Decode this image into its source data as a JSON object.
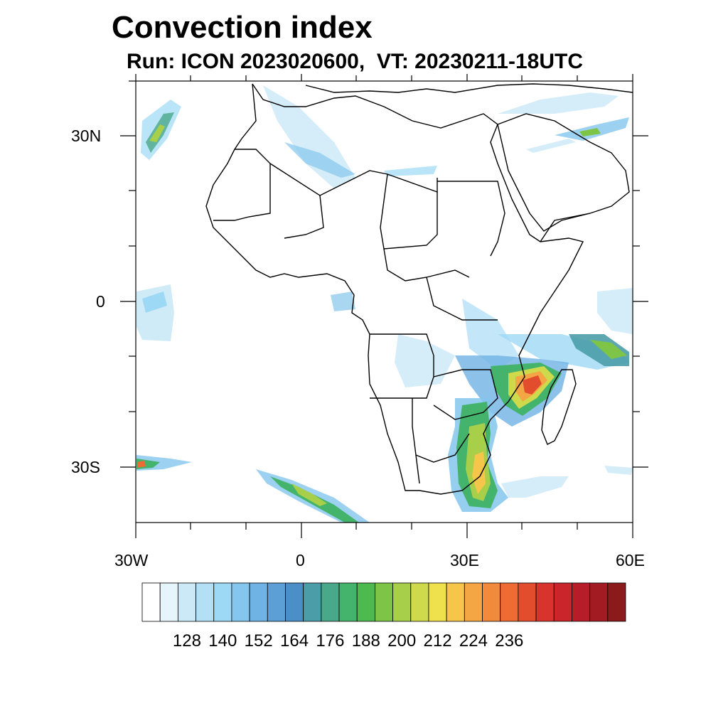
{
  "title": "Convection index",
  "subtitle": "Run: ICON 2023020600,  VT: 20230211-18UTC",
  "axes": {
    "x_ticks": [
      "30W",
      "0",
      "30E",
      "60E"
    ],
    "y_ticks": [
      "30N",
      "0",
      "30S"
    ],
    "lon_range": [
      -30,
      60
    ],
    "lat_range": [
      -40,
      40
    ]
  },
  "colorbar": {
    "labels": [
      "128",
      "140",
      "152",
      "164",
      "176",
      "188",
      "200",
      "212",
      "224",
      "236"
    ],
    "colors": [
      "#ffffff",
      "#e6f4fb",
      "#cbe9f7",
      "#b4e0f6",
      "#9dd8f5",
      "#84c6ed",
      "#6fb3e4",
      "#5c9fd6",
      "#4a8fc8",
      "#4b9da8",
      "#4aa88a",
      "#44b36c",
      "#4cba4e",
      "#7ec446",
      "#a8cf4a",
      "#cfd94c",
      "#efe04d",
      "#f6c64a",
      "#f4a644",
      "#f28a3c",
      "#ee6b33",
      "#e24d2e",
      "#d8332c",
      "#c9252b",
      "#b71d28",
      "#a21a22",
      "#8b1a1c"
    ]
  }
}
